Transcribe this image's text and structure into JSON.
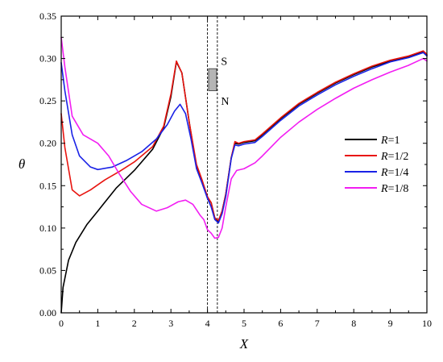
{
  "chart_data": {
    "type": "line",
    "title": "",
    "xlabel": "X",
    "ylabel": "θ",
    "xlim": [
      0,
      10
    ],
    "ylim": [
      0,
      0.35
    ],
    "xticks": [
      0,
      1,
      2,
      3,
      4,
      5,
      6,
      7,
      8,
      9,
      10
    ],
    "yticks": [
      0.0,
      0.05,
      0.1,
      0.15,
      0.2,
      0.25,
      0.3,
      0.35
    ],
    "xtick_labels": [
      "0",
      "1",
      "2",
      "3",
      "4",
      "5",
      "6",
      "7",
      "8",
      "9",
      "10"
    ],
    "ytick_labels": [
      "0.00",
      "0.05",
      "0.10",
      "0.15",
      "0.20",
      "0.25",
      "0.30",
      "0.35"
    ],
    "grid": false,
    "legend_position": "right",
    "legend_prefix": "R",
    "series": [
      {
        "name": "=1",
        "color": "#000000",
        "points": [
          [
            0,
            0.0
          ],
          [
            0.05,
            0.03
          ],
          [
            0.2,
            0.062
          ],
          [
            0.4,
            0.083
          ],
          [
            0.7,
            0.104
          ],
          [
            1.0,
            0.12
          ],
          [
            1.5,
            0.147
          ],
          [
            2.0,
            0.168
          ],
          [
            2.5,
            0.193
          ],
          [
            2.8,
            0.218
          ],
          [
            3.0,
            0.255
          ],
          [
            3.15,
            0.296
          ],
          [
            3.3,
            0.283
          ],
          [
            3.5,
            0.225
          ],
          [
            3.7,
            0.172
          ],
          [
            3.85,
            0.155
          ],
          [
            4.0,
            0.135
          ],
          [
            4.1,
            0.13
          ],
          [
            4.2,
            0.112
          ],
          [
            4.3,
            0.108
          ],
          [
            4.4,
            0.12
          ],
          [
            4.5,
            0.14
          ],
          [
            4.65,
            0.183
          ],
          [
            4.75,
            0.2
          ],
          [
            4.85,
            0.199
          ],
          [
            5.0,
            0.201
          ],
          [
            5.3,
            0.203
          ],
          [
            5.5,
            0.21
          ],
          [
            6.0,
            0.229
          ],
          [
            6.5,
            0.246
          ],
          [
            7.0,
            0.259
          ],
          [
            7.5,
            0.271
          ],
          [
            8.0,
            0.281
          ],
          [
            8.5,
            0.29
          ],
          [
            9.0,
            0.297
          ],
          [
            9.5,
            0.302
          ],
          [
            9.9,
            0.308
          ],
          [
            10.0,
            0.304
          ]
        ]
      },
      {
        "name": "=1/2",
        "color": "#e8140f",
        "points": [
          [
            0,
            0.235
          ],
          [
            0.1,
            0.195
          ],
          [
            0.3,
            0.145
          ],
          [
            0.5,
            0.138
          ],
          [
            0.8,
            0.145
          ],
          [
            1.2,
            0.157
          ],
          [
            1.6,
            0.167
          ],
          [
            2.0,
            0.178
          ],
          [
            2.5,
            0.196
          ],
          [
            2.8,
            0.22
          ],
          [
            3.0,
            0.258
          ],
          [
            3.15,
            0.297
          ],
          [
            3.3,
            0.283
          ],
          [
            3.5,
            0.225
          ],
          [
            3.7,
            0.175
          ],
          [
            3.85,
            0.157
          ],
          [
            4.0,
            0.137
          ],
          [
            4.1,
            0.13
          ],
          [
            4.2,
            0.112
          ],
          [
            4.3,
            0.109
          ],
          [
            4.4,
            0.12
          ],
          [
            4.5,
            0.14
          ],
          [
            4.65,
            0.183
          ],
          [
            4.75,
            0.202
          ],
          [
            4.85,
            0.2
          ],
          [
            5.0,
            0.202
          ],
          [
            5.3,
            0.204
          ],
          [
            5.5,
            0.211
          ],
          [
            6.0,
            0.23
          ],
          [
            6.5,
            0.247
          ],
          [
            7.0,
            0.26
          ],
          [
            7.5,
            0.272
          ],
          [
            8.0,
            0.282
          ],
          [
            8.5,
            0.291
          ],
          [
            9.0,
            0.298
          ],
          [
            9.5,
            0.303
          ],
          [
            9.9,
            0.309
          ],
          [
            10.0,
            0.305
          ]
        ]
      },
      {
        "name": "=1/4",
        "color": "#1a22e6",
        "points": [
          [
            0,
            0.295
          ],
          [
            0.1,
            0.262
          ],
          [
            0.3,
            0.21
          ],
          [
            0.5,
            0.185
          ],
          [
            0.8,
            0.172
          ],
          [
            1.0,
            0.169
          ],
          [
            1.4,
            0.172
          ],
          [
            1.8,
            0.18
          ],
          [
            2.2,
            0.19
          ],
          [
            2.6,
            0.205
          ],
          [
            2.9,
            0.222
          ],
          [
            3.1,
            0.238
          ],
          [
            3.25,
            0.246
          ],
          [
            3.4,
            0.235
          ],
          [
            3.55,
            0.205
          ],
          [
            3.7,
            0.17
          ],
          [
            3.85,
            0.153
          ],
          [
            4.0,
            0.135
          ],
          [
            4.1,
            0.125
          ],
          [
            4.2,
            0.11
          ],
          [
            4.3,
            0.106
          ],
          [
            4.4,
            0.117
          ],
          [
            4.5,
            0.137
          ],
          [
            4.65,
            0.182
          ],
          [
            4.75,
            0.198
          ],
          [
            4.85,
            0.197
          ],
          [
            5.0,
            0.199
          ],
          [
            5.3,
            0.201
          ],
          [
            5.5,
            0.208
          ],
          [
            6.0,
            0.227
          ],
          [
            6.5,
            0.244
          ],
          [
            7.0,
            0.257
          ],
          [
            7.5,
            0.269
          ],
          [
            8.0,
            0.279
          ],
          [
            8.5,
            0.288
          ],
          [
            9.0,
            0.296
          ],
          [
            9.5,
            0.301
          ],
          [
            9.9,
            0.307
          ],
          [
            10.0,
            0.303
          ]
        ]
      },
      {
        "name": "=1/8",
        "color": "#f21ef2",
        "points": [
          [
            0,
            0.325
          ],
          [
            0.1,
            0.29
          ],
          [
            0.3,
            0.232
          ],
          [
            0.6,
            0.21
          ],
          [
            1.0,
            0.2
          ],
          [
            1.3,
            0.185
          ],
          [
            1.6,
            0.163
          ],
          [
            1.9,
            0.143
          ],
          [
            2.2,
            0.128
          ],
          [
            2.6,
            0.12
          ],
          [
            2.9,
            0.124
          ],
          [
            3.2,
            0.131
          ],
          [
            3.4,
            0.133
          ],
          [
            3.6,
            0.128
          ],
          [
            3.8,
            0.115
          ],
          [
            3.9,
            0.11
          ],
          [
            4.0,
            0.098
          ],
          [
            4.1,
            0.094
          ],
          [
            4.2,
            0.088
          ],
          [
            4.3,
            0.089
          ],
          [
            4.4,
            0.1
          ],
          [
            4.5,
            0.125
          ],
          [
            4.65,
            0.158
          ],
          [
            4.8,
            0.168
          ],
          [
            5.0,
            0.17
          ],
          [
            5.3,
            0.177
          ],
          [
            5.5,
            0.185
          ],
          [
            6.0,
            0.207
          ],
          [
            6.5,
            0.225
          ],
          [
            7.0,
            0.24
          ],
          [
            7.5,
            0.253
          ],
          [
            8.0,
            0.265
          ],
          [
            8.5,
            0.275
          ],
          [
            9.0,
            0.284
          ],
          [
            9.5,
            0.292
          ],
          [
            9.9,
            0.3
          ],
          [
            10.0,
            0.297
          ]
        ]
      }
    ],
    "annotations": {
      "vlines_x": [
        4.0,
        4.27
      ],
      "band": {
        "x0": 4.03,
        "x1": 4.25,
        "y0": 0.262,
        "y1": 0.288,
        "color": "#b5b5b5"
      },
      "labels": [
        {
          "text": "S",
          "x": 4.37,
          "y": 0.297
        },
        {
          "text": "N",
          "x": 4.37,
          "y": 0.25
        }
      ]
    }
  }
}
